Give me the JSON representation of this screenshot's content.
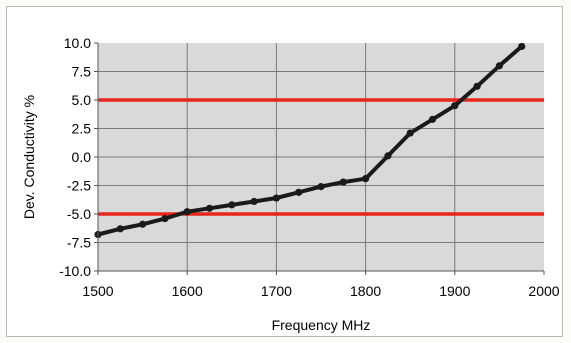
{
  "chart_data": {
    "type": "line",
    "xlabel": "Frequency MHz",
    "ylabel": "Dev. Conductivity %",
    "xlim": [
      1500,
      2000
    ],
    "ylim": [
      -10,
      10
    ],
    "x_ticks": [
      "1500",
      "1600",
      "1700",
      "1800",
      "1900",
      "2000"
    ],
    "y_ticks": [
      "10.0",
      "7.5",
      "5.0",
      "2.5",
      "0.0",
      "-2.5",
      "-5.0",
      "-7.5",
      "-10.0"
    ],
    "grid": true,
    "legend": "none",
    "colors": {
      "plot_bg": "#d9d9d9",
      "series": "#1a1a1a",
      "limit": "#e8261b",
      "grid": "#7a7a7a"
    },
    "series": [
      {
        "x": [
          1500,
          1525,
          1550,
          1575,
          1600,
          1625,
          1650,
          1675,
          1700,
          1725,
          1750,
          1775,
          1800,
          1825,
          1850,
          1875,
          1900,
          1925,
          1950,
          1975
        ],
        "values": [
          -6.8,
          -6.3,
          -5.9,
          -5.4,
          -4.8,
          -4.5,
          -4.2,
          -3.9,
          -3.6,
          -3.1,
          -2.6,
          -2.2,
          -1.9,
          0.1,
          2.1,
          3.3,
          4.5,
          6.2,
          8.0,
          9.7
        ]
      }
    ],
    "limit_lines": [
      5.0,
      -5.0
    ]
  }
}
